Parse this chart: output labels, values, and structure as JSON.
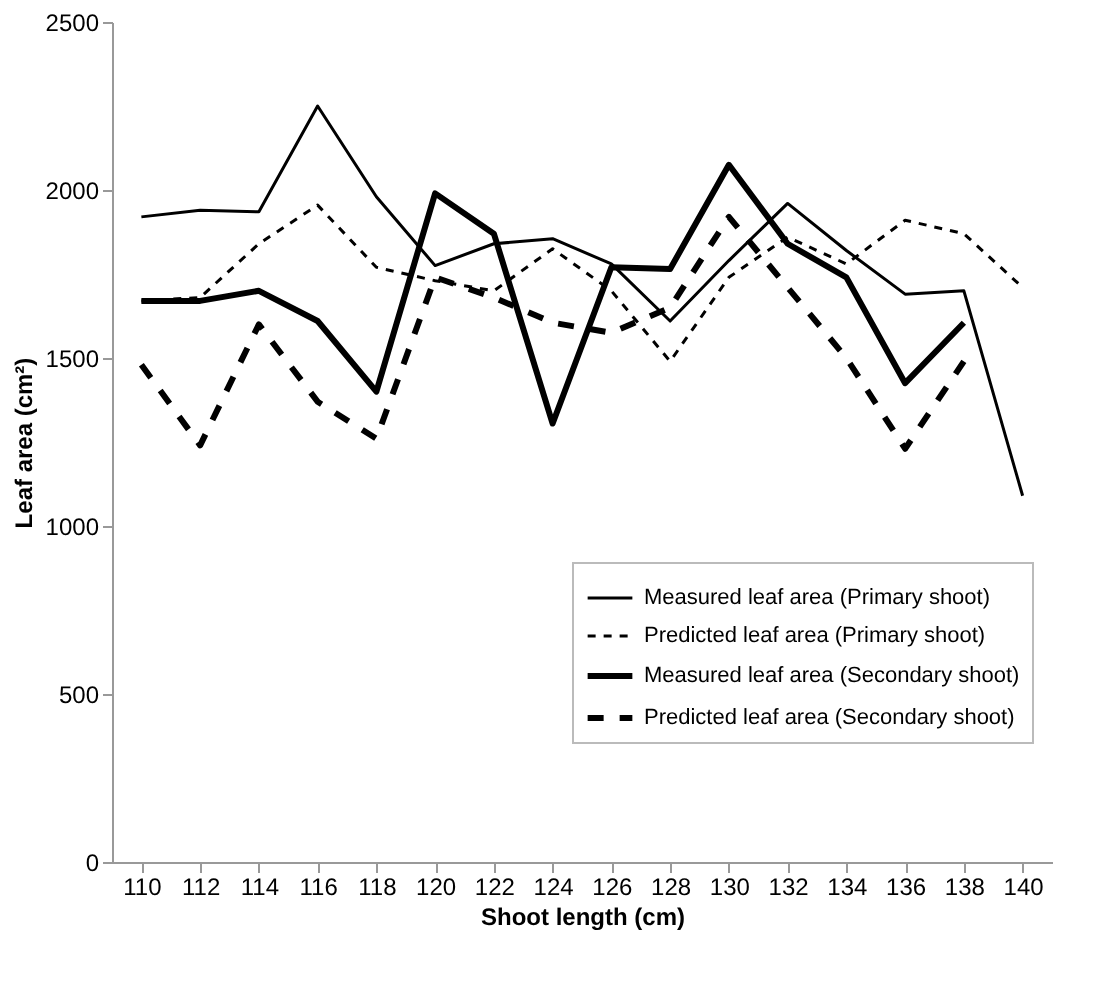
{
  "chart_data": {
    "type": "line",
    "xlabel": "Shoot length (cm)",
    "ylabel": "Leaf area (cm²)",
    "categories": [
      "110",
      "112",
      "114",
      "116",
      "118",
      "120",
      "122",
      "124",
      "126",
      "128",
      "130",
      "132",
      "134",
      "136",
      "138",
      "140"
    ],
    "ylim": [
      0,
      2500
    ],
    "yticks": [
      0,
      500,
      1000,
      1500,
      2000,
      2500
    ],
    "grid": false,
    "legend": "right",
    "marker": "none",
    "series": [
      {
        "name": "Measured leaf area (Primary shoot)",
        "color": "#000000",
        "line_style": "solid",
        "values": [
          1920,
          1940,
          1935,
          2250,
          1980,
          1775,
          1840,
          1855,
          1780,
          1610,
          1790,
          1960,
          1820,
          1690,
          1700,
          1090
        ]
      },
      {
        "name": "Predicted leaf area (Primary shoot)",
        "color": "#000000",
        "line_style": "dashed",
        "values": [
          1670,
          1680,
          1840,
          1955,
          1770,
          1730,
          1700,
          1825,
          1700,
          1490,
          1740,
          1860,
          1780,
          1910,
          1870,
          1710
        ]
      },
      {
        "name": "Measured leaf area (Secondary shoot)",
        "color": "#000000",
        "line_style": "solid",
        "values": [
          1670,
          1670,
          1700,
          1610,
          1400,
          1990,
          1870,
          1305,
          1770,
          1765,
          2075,
          1840,
          1740,
          1425,
          1605,
          null
        ]
      },
      {
        "name": "Predicted leaf area (Secondary shoot)",
        "color": "#000000",
        "line_style": "dashed",
        "values": [
          1480,
          1240,
          1600,
          1370,
          1260,
          1740,
          1680,
          1605,
          1575,
          1650,
          1920,
          1710,
          1500,
          1230,
          1490,
          null
        ]
      }
    ]
  }
}
